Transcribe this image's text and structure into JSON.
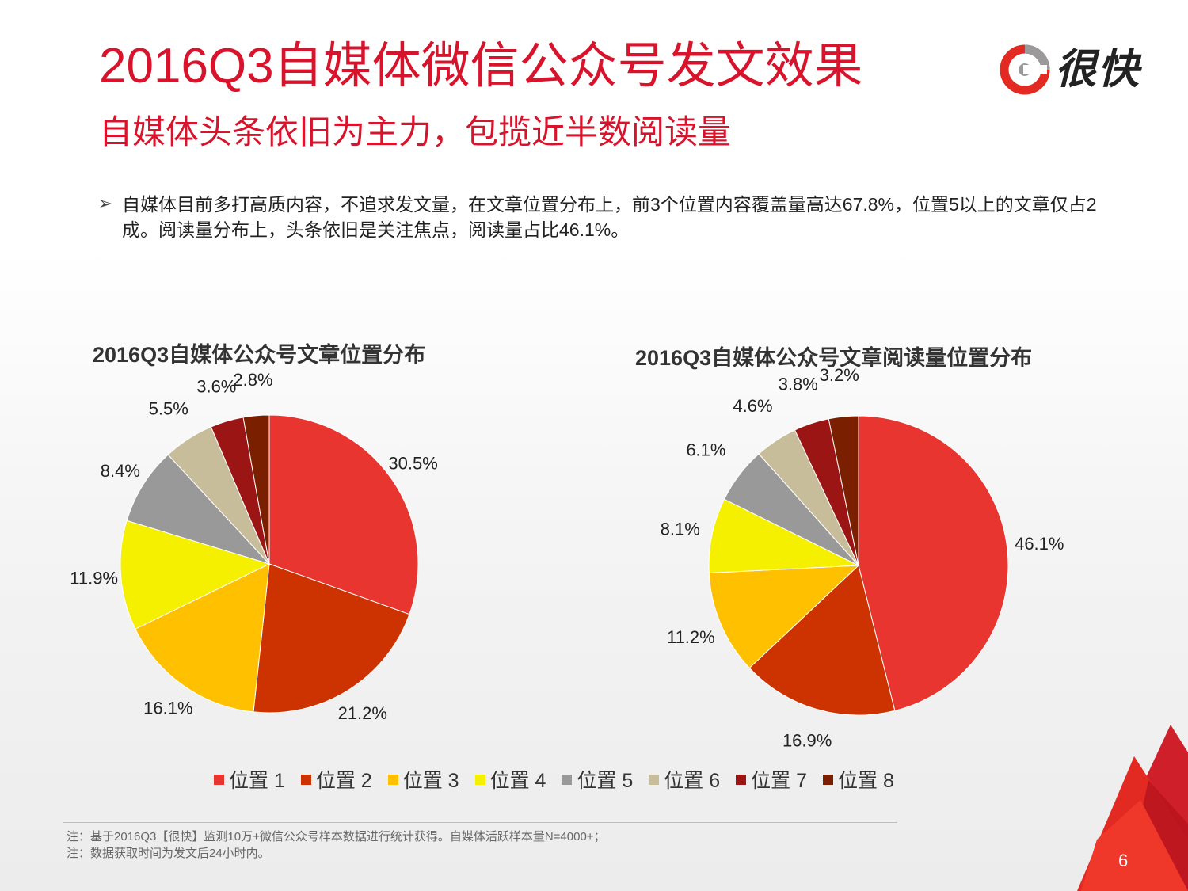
{
  "header": {
    "title": "2016Q3自媒体微信公众号发文效果",
    "subtitle": "自媒体头条依旧为主力，包揽近半数阅读量",
    "logo_text": "很快"
  },
  "summary": {
    "bullet": "自媒体目前多打高质内容，不追求发文量，在文章位置分布上，前3个位置内容覆盖量高达67.8%，位置5以上的文章仅占2成。阅读量分布上，头条依旧是关注焦点，阅读量占比46.1%。"
  },
  "chart_data": [
    {
      "type": "pie",
      "title": "2016Q3自媒体公众号文章位置分布",
      "categories": [
        "位置 1",
        "位置 2",
        "位置 3",
        "位置 4",
        "位置 5",
        "位置 6",
        "位置 7",
        "位置 8"
      ],
      "values": [
        30.5,
        21.2,
        16.1,
        11.9,
        8.4,
        5.5,
        3.6,
        2.8
      ],
      "labels": [
        "30.5%",
        "21.2%",
        "16.1%",
        "11.9%",
        "8.4%",
        "5.5%",
        "3.6%",
        "2.8%"
      ],
      "colors": [
        "#e83530",
        "#cc3300",
        "#ffc000",
        "#f5ef00",
        "#999999",
        "#c8bd9a",
        "#9c1515",
        "#7a2000"
      ]
    },
    {
      "type": "pie",
      "title": "2016Q3自媒体公众号文章阅读量位置分布",
      "categories": [
        "位置 1",
        "位置 2",
        "位置 3",
        "位置 4",
        "位置 5",
        "位置 6",
        "位置 7",
        "位置 8"
      ],
      "values": [
        46.1,
        16.9,
        11.2,
        8.1,
        6.1,
        4.6,
        3.8,
        3.2
      ],
      "labels": [
        "46.1%",
        "16.9%",
        "11.2%",
        "8.1%",
        "6.1%",
        "4.6%",
        "3.8%",
        "3.2%"
      ],
      "colors": [
        "#e83530",
        "#cc3300",
        "#ffc000",
        "#f5ef00",
        "#999999",
        "#c8bd9a",
        "#9c1515",
        "#7a2000"
      ]
    }
  ],
  "legend": {
    "items": [
      {
        "label": "位置 1",
        "color": "#e83530"
      },
      {
        "label": "位置 2",
        "color": "#cc3300"
      },
      {
        "label": "位置 3",
        "color": "#ffc000"
      },
      {
        "label": "位置 4",
        "color": "#f5ef00"
      },
      {
        "label": "位置 5",
        "color": "#999999"
      },
      {
        "label": "位置 6",
        "color": "#c8bd9a"
      },
      {
        "label": "位置 7",
        "color": "#9c1515"
      },
      {
        "label": "位置 8",
        "color": "#7a2000"
      }
    ]
  },
  "footer": {
    "note_1": "注：基于2016Q3【很快】监测10万+微信公众号样本数据进行统计获得。自媒体活跃样本量N=4000+；",
    "note_2": "注：数据获取时间为发文后24小时内。",
    "page_number": "6"
  }
}
